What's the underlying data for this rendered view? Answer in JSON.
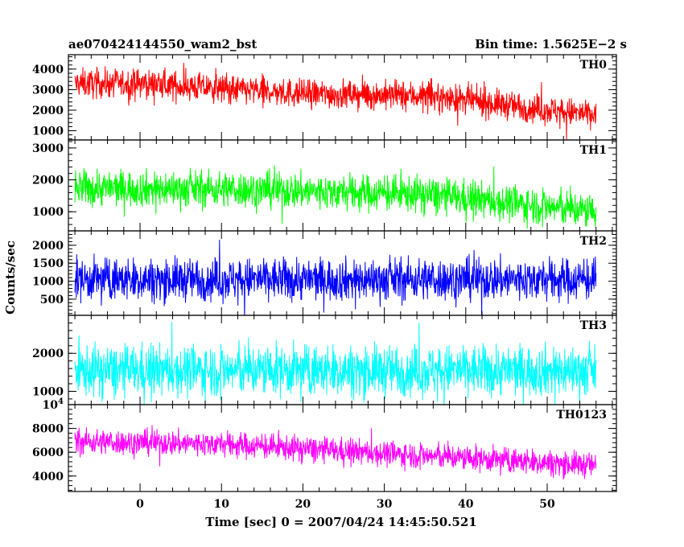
{
  "title_left": "ae070424144550_wam2_bst",
  "title_right": "Bin time: 1.5625E−2 s",
  "xlabel": "Time [sec] 0 = 2007/04/24 14:45:50.521",
  "ylabel": "Counts/sec",
  "chart_data": [
    {
      "type": "line",
      "series": [
        {
          "name": "TH0",
          "color": "#ff0000",
          "trend": [
            [
              -8,
              3300
            ],
            [
              0,
              3300
            ],
            [
              20,
              2800
            ],
            [
              35,
              2700
            ],
            [
              56,
              1750
            ]
          ],
          "spread": 1050
        }
      ],
      "xlim": [
        -8.8,
        58.5
      ],
      "ylim": [
        550,
        4700
      ],
      "yticks": [
        1000,
        2000,
        3000,
        4000
      ],
      "yticklabels": [
        "1000",
        "2000",
        "3000",
        "4000"
      ]
    },
    {
      "type": "line",
      "series": [
        {
          "name": "TH1",
          "color": "#00ff00",
          "trend": [
            [
              -8,
              1750
            ],
            [
              12,
              1700
            ],
            [
              35,
              1550
            ],
            [
              56,
              1000
            ]
          ],
          "spread": 850
        }
      ],
      "xlim": [
        -8.8,
        58.5
      ],
      "ylim": [
        400,
        3250
      ],
      "yticks": [
        1000,
        2000,
        3000
      ],
      "yticklabels": [
        "1000",
        "2000",
        "3000"
      ]
    },
    {
      "type": "line",
      "series": [
        {
          "name": "TH2",
          "color": "#0000ff",
          "trend": [
            [
              -8,
              1050
            ],
            [
              20,
              1050
            ],
            [
              56,
              1050
            ]
          ],
          "spread": 880
        }
      ],
      "xlim": [
        -8.8,
        58.5
      ],
      "ylim": [
        50,
        2400
      ],
      "yticks": [
        500,
        1000,
        1500,
        2000
      ],
      "yticklabels": [
        "500",
        "1000",
        "1500",
        "2000"
      ]
    },
    {
      "type": "line",
      "series": [
        {
          "name": "TH3",
          "color": "#00ffff",
          "trend": [
            [
              -8,
              1550
            ],
            [
              20,
              1550
            ],
            [
              56,
              1550
            ]
          ],
          "spread": 1000
        }
      ],
      "xlim": [
        -8.8,
        58.5
      ],
      "ylim": [
        650,
        3000
      ],
      "yticks": [
        1000,
        2000
      ],
      "yticklabels": [
        "1000",
        "2000"
      ]
    },
    {
      "type": "line",
      "series": [
        {
          "name": "TH0123",
          "color": "#ff00ff",
          "trend": [
            [
              -8,
              6900
            ],
            [
              10,
              6700
            ],
            [
              30,
              5900
            ],
            [
              56,
              4900
            ]
          ],
          "spread": 1600
        }
      ],
      "xlim": [
        -8.8,
        58.5
      ],
      "ylim": [
        2700,
        10000
      ],
      "yticks": [
        4000,
        6000,
        8000,
        10000
      ],
      "yticklabels": [
        "4000",
        "6000",
        "8000",
        "10⁴"
      ],
      "xticks": [
        0,
        10,
        20,
        30,
        40,
        50
      ],
      "xticklabels": [
        "0",
        "10",
        "20",
        "30",
        "40",
        "50"
      ]
    }
  ]
}
